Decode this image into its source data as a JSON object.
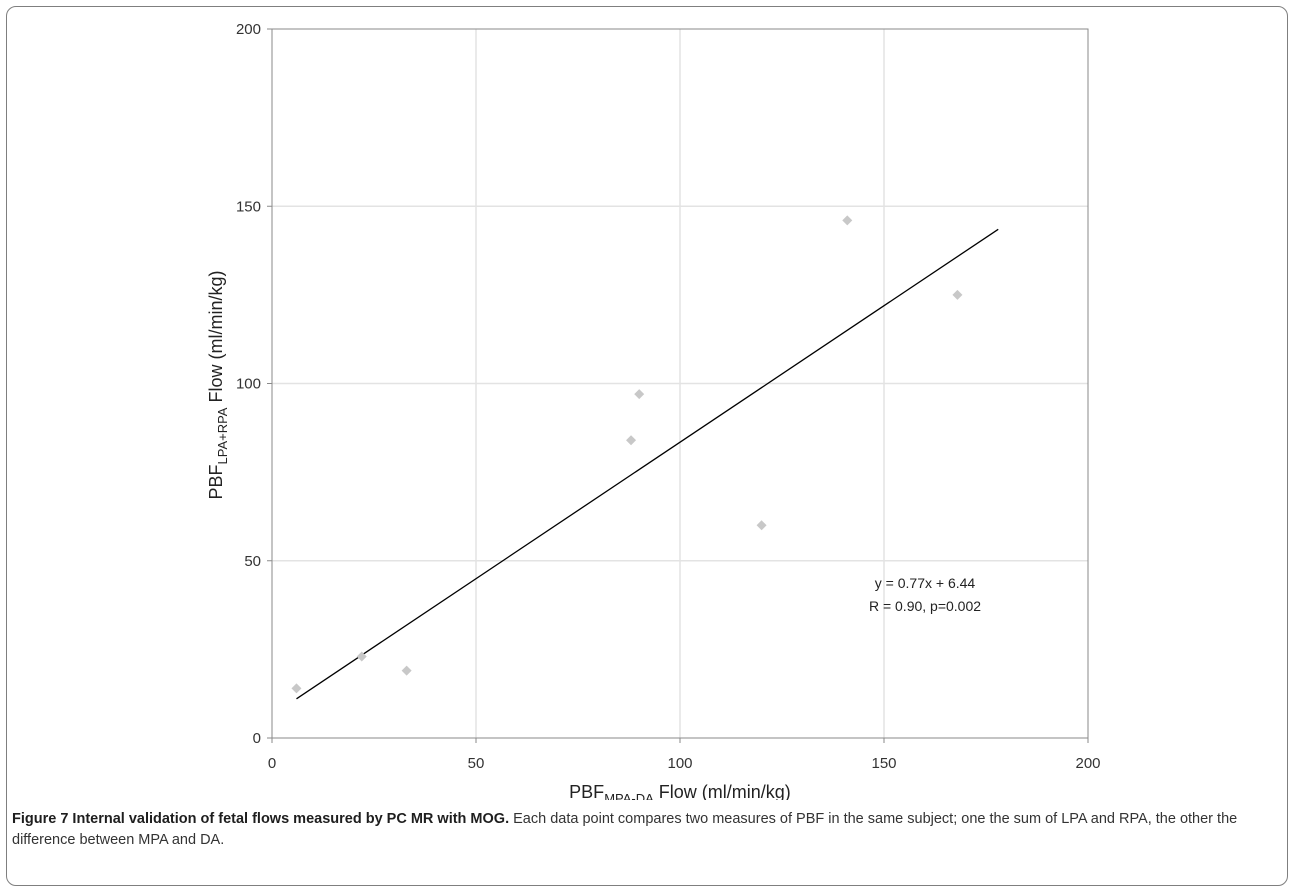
{
  "chart_data": {
    "type": "scatter",
    "xlabel": {
      "main": "PBF",
      "sub": "MPA-DA",
      "rest": " Flow (ml/min/kg)"
    },
    "ylabel": {
      "main": "PBF",
      "sub": "LPA+RPA",
      "rest": " Flow (ml/min/kg)"
    },
    "xlim": [
      0,
      200
    ],
    "ylim": [
      0,
      200
    ],
    "xticks": [
      0,
      50,
      100,
      150,
      200
    ],
    "yticks": [
      0,
      50,
      100,
      150,
      200
    ],
    "grid": true,
    "series": [
      {
        "marker": "diamond",
        "color": "#c8c8c8",
        "points": [
          {
            "x": 6,
            "y": 14
          },
          {
            "x": 22,
            "y": 23
          },
          {
            "x": 33,
            "y": 19
          },
          {
            "x": 88,
            "y": 84
          },
          {
            "x": 90,
            "y": 97
          },
          {
            "x": 120,
            "y": 60
          },
          {
            "x": 141,
            "y": 146
          },
          {
            "x": 168,
            "y": 125
          }
        ]
      }
    ],
    "trendline": {
      "slope": 0.77,
      "intercept": 6.44,
      "x_range": [
        6,
        178
      ],
      "color": "#000000"
    },
    "annotations": [
      "y = 0.77x + 6.44",
      "R = 0.90, p=0.002"
    ]
  },
  "caption": {
    "title": "Figure 7 Internal validation of fetal flows measured by PC MR with MOG.",
    "text": " Each data point compares two measures of PBF in the same subject; one the sum of LPA and RPA, the other the difference between MPA and DA."
  }
}
